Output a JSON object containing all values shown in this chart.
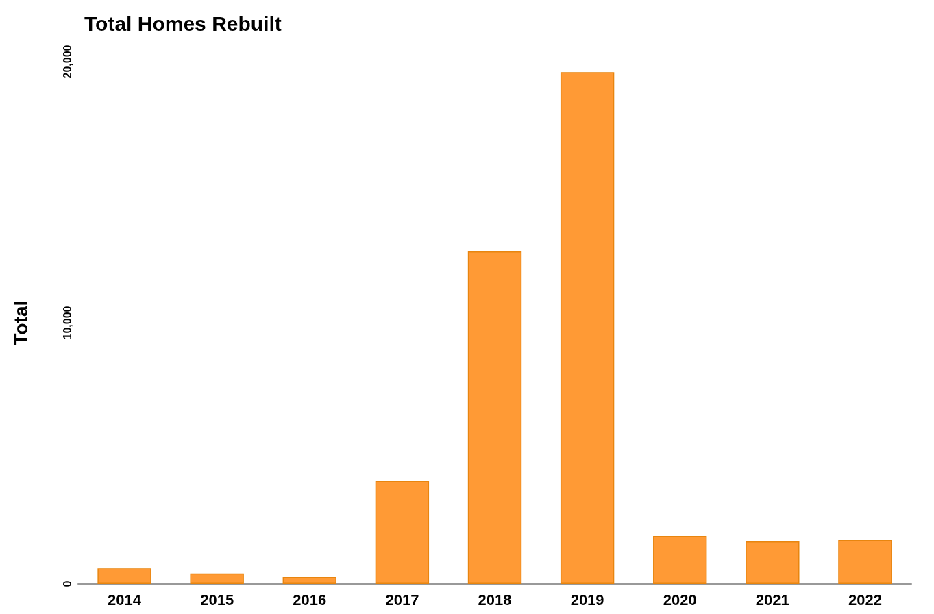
{
  "chart_data": {
    "type": "bar",
    "title": "Total Homes Rebuilt",
    "ylabel": "Total",
    "categories": [
      "2014",
      "2015",
      "2016",
      "2017",
      "2018",
      "2019",
      "2020",
      "2021",
      "2022"
    ],
    "values": [
      600,
      400,
      260,
      3940,
      12730,
      19600,
      1840,
      1630,
      1680
    ],
    "color": "#ff9a35",
    "ylim": [
      0,
      20000
    ],
    "yticks": [
      {
        "value": 0,
        "label": "0"
      },
      {
        "value": 10000,
        "label": "10,000"
      },
      {
        "value": 20000,
        "label": "20,000"
      }
    ],
    "grid": "y"
  }
}
